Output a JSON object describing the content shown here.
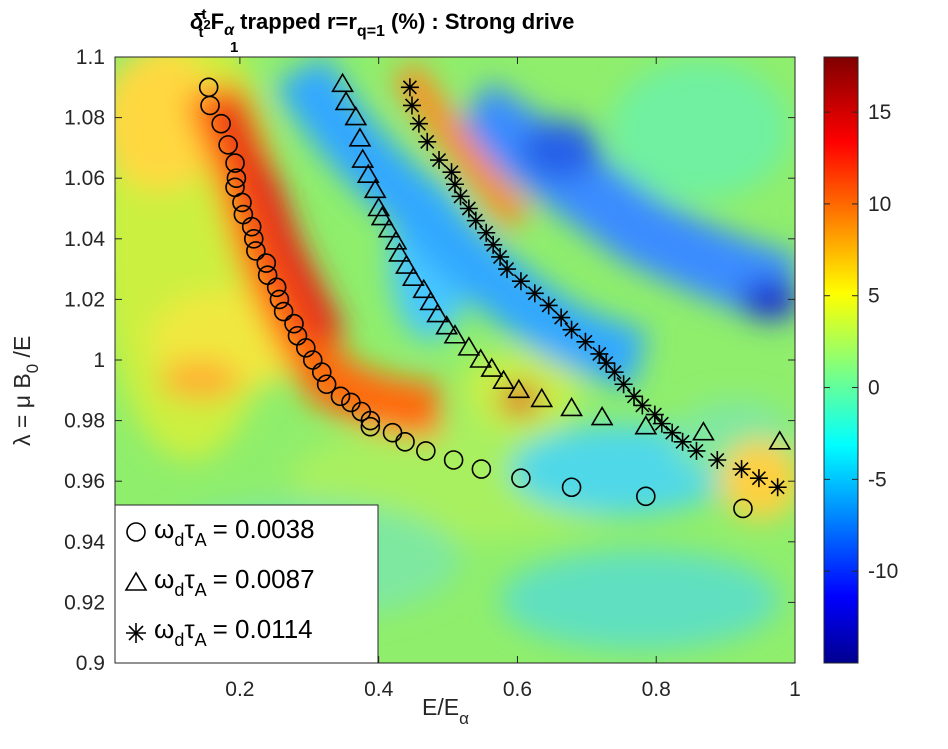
{
  "chart_data": {
    "type": "heatmap",
    "title": {
      "prefix": "δ",
      "prefix_sup": "t",
      "prefix_sub": "t",
      "sub2": "1",
      "sup2": "2",
      "main_F": "F",
      "main_F_sub": "α",
      "text1": " trapped r=r",
      "r_sub": "q=1",
      "text2": " (%) : Strong drive"
    },
    "xlabel": {
      "main": "E/E",
      "sub": "α"
    },
    "ylabel": {
      "main": "λ = μ B",
      "sub": "0",
      "tail": " /E"
    },
    "xlim": [
      0.02,
      1.0
    ],
    "ylim": [
      0.9,
      1.1
    ],
    "xticks": [
      0.2,
      0.4,
      0.6,
      0.8,
      1
    ],
    "xtick_labels": [
      "0.2",
      "0.4",
      "0.6",
      "0.8",
      "1"
    ],
    "yticks": [
      0.9,
      0.92,
      0.94,
      0.96,
      0.98,
      1,
      1.02,
      1.04,
      1.06,
      1.08,
      1.1
    ],
    "ytick_labels": [
      "0.9",
      "0.92",
      "0.94",
      "0.96",
      "0.98",
      "1",
      "1.02",
      "1.04",
      "1.06",
      "1.08",
      "1.1"
    ],
    "colorbar": {
      "range": [
        -15,
        18
      ],
      "ticks": [
        15,
        10,
        5,
        0,
        -5,
        -10
      ],
      "tick_labels": [
        "15",
        "10",
        "5",
        "0",
        "-5",
        "-10"
      ],
      "colormap": "jet"
    },
    "series": [
      {
        "name": "omega_d tau_A = 0.0038",
        "marker": "circle",
        "label_value": "= 0.0038",
        "x": [
          0.155,
          0.157,
          0.173,
          0.183,
          0.193,
          0.195,
          0.193,
          0.203,
          0.205,
          0.217,
          0.22,
          0.223,
          0.238,
          0.24,
          0.253,
          0.257,
          0.263,
          0.278,
          0.283,
          0.295,
          0.305,
          0.318,
          0.325,
          0.345,
          0.36,
          0.375,
          0.388,
          0.388,
          0.42,
          0.438,
          0.468,
          0.508,
          0.548,
          0.605,
          0.678,
          0.785,
          0.925
        ],
        "y": [
          1.09,
          1.084,
          1.078,
          1.071,
          1.065,
          1.06,
          1.057,
          1.052,
          1.048,
          1.044,
          1.04,
          1.036,
          1.032,
          1.028,
          1.024,
          1.02,
          1.016,
          1.012,
          1.008,
          1.004,
          1.0,
          0.996,
          0.992,
          0.988,
          0.986,
          0.983,
          0.98,
          0.978,
          0.976,
          0.973,
          0.97,
          0.967,
          0.964,
          0.961,
          0.958,
          0.955,
          0.951
        ]
      },
      {
        "name": "omega_d tau_A = 0.0087",
        "marker": "triangle",
        "label_value": "= 0.0087",
        "x": [
          0.348,
          0.353,
          0.367,
          0.373,
          0.377,
          0.385,
          0.395,
          0.4,
          0.405,
          0.415,
          0.425,
          0.43,
          0.44,
          0.45,
          0.465,
          0.475,
          0.485,
          0.498,
          0.51,
          0.53,
          0.547,
          0.563,
          0.58,
          0.602,
          0.635,
          0.678,
          0.722,
          0.785,
          0.868,
          0.978
        ],
        "y": [
          1.091,
          1.085,
          1.08,
          1.073,
          1.066,
          1.061,
          1.056,
          1.05,
          1.047,
          1.043,
          1.039,
          1.035,
          1.031,
          1.027,
          1.023,
          1.019,
          1.015,
          1.011,
          1.008,
          1.004,
          1.0,
          0.997,
          0.993,
          0.99,
          0.987,
          0.984,
          0.981,
          0.978,
          0.976,
          0.973
        ]
      },
      {
        "name": "omega_d tau_A = 0.0114",
        "marker": "asterisk",
        "label_value": "= 0.0114",
        "x": [
          0.445,
          0.448,
          0.458,
          0.47,
          0.487,
          0.505,
          0.51,
          0.518,
          0.53,
          0.54,
          0.555,
          0.565,
          0.575,
          0.585,
          0.605,
          0.625,
          0.645,
          0.663,
          0.678,
          0.698,
          0.718,
          0.728,
          0.74,
          0.753,
          0.768,
          0.78,
          0.798,
          0.808,
          0.823,
          0.838,
          0.858,
          0.888,
          0.923,
          0.948,
          0.975
        ],
        "y": [
          1.09,
          1.084,
          1.078,
          1.072,
          1.066,
          1.062,
          1.058,
          1.054,
          1.05,
          1.046,
          1.042,
          1.038,
          1.034,
          1.03,
          1.026,
          1.022,
          1.018,
          1.014,
          1.01,
          1.006,
          1.002,
          0.999,
          0.996,
          0.992,
          0.988,
          0.985,
          0.982,
          0.979,
          0.976,
          0.973,
          0.97,
          0.967,
          0.964,
          0.961,
          0.958
        ]
      }
    ],
    "legend": {
      "location": "bottom-left",
      "omega": "ω",
      "omega_sub": "d",
      "tau": "τ",
      "tau_sub": "A"
    }
  }
}
